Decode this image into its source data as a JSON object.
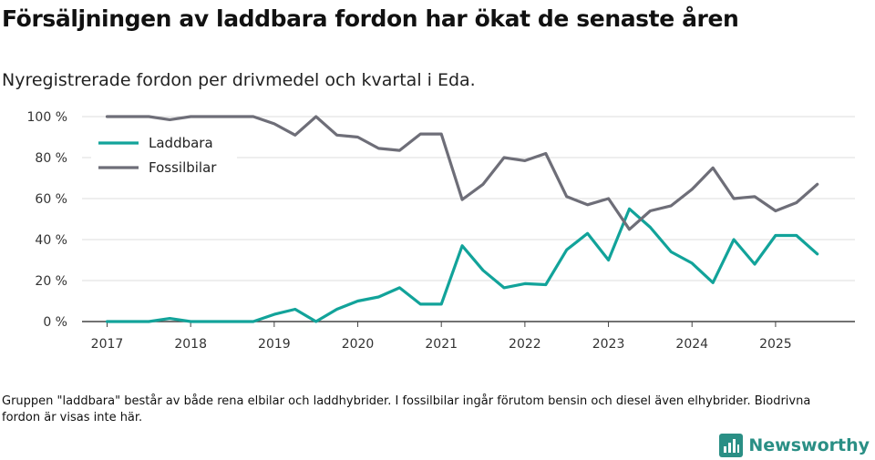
{
  "title": "Försäljningen av laddbara fordon har ökat de senaste åren",
  "subtitle": "Nyregistrerade fordon per drivmedel och kvartal i Eda.",
  "footnote": "Gruppen \"laddbara\" består av både rena elbilar och laddhybrider. I fossilbilar ingår förutom bensin och diesel även elhybrider. Biodrivna fordon är visas inte här.",
  "brand": {
    "name": "Newsworthy",
    "icon": "bar-chart-logo-icon"
  },
  "colors": {
    "laddbara": "#12a39a",
    "fossil": "#6e6e78",
    "grid": "#dddddd",
    "axis": "#444444",
    "brand": "#2a8f85"
  },
  "chart_data": {
    "type": "line",
    "title": "Nyregistrerade fordon per drivmedel och kvartal i Eda.",
    "xlabel": "",
    "ylabel": "",
    "ylim": [
      0,
      100
    ],
    "yticks": [
      0,
      20,
      40,
      60,
      80,
      100
    ],
    "ytick_labels": [
      "0 %",
      "20 %",
      "40 %",
      "60 %",
      "80 %",
      "100 %"
    ],
    "xlim": [
      2016.7,
      2025.95
    ],
    "xticks": [
      2017,
      2018,
      2019,
      2020,
      2021,
      2022,
      2023,
      2024,
      2025
    ],
    "xtick_labels": [
      "2017",
      "2018",
      "2019",
      "2020",
      "2021",
      "2022",
      "2023",
      "2024",
      "2025"
    ],
    "grid": true,
    "legend_position": "top-left",
    "x": [
      2017.0,
      2017.25,
      2017.5,
      2017.75,
      2018.0,
      2018.25,
      2018.5,
      2018.75,
      2019.0,
      2019.25,
      2019.5,
      2019.75,
      2020.0,
      2020.25,
      2020.5,
      2020.75,
      2021.0,
      2021.25,
      2021.5,
      2021.75,
      2022.0,
      2022.25,
      2022.5,
      2022.75,
      2023.0,
      2023.25,
      2023.5,
      2023.75,
      2024.0,
      2024.25,
      2024.5,
      2024.75,
      2025.0,
      2025.25,
      2025.5
    ],
    "series": [
      {
        "name": "Laddbara",
        "color": "#12a39a",
        "values": [
          0,
          0,
          0,
          1.5,
          0,
          0,
          0,
          0,
          3.5,
          6,
          0,
          6,
          10,
          12,
          16.5,
          8.5,
          8.5,
          37,
          25,
          16.5,
          18.5,
          18,
          35,
          43,
          30,
          55,
          46,
          34,
          28.5,
          19,
          40,
          28,
          42,
          42,
          33
        ]
      },
      {
        "name": "Fossilbilar",
        "color": "#6e6e78",
        "values": [
          100,
          100,
          100,
          98.5,
          100,
          100,
          100,
          100,
          96.5,
          91,
          100,
          91,
          90,
          84.5,
          83.5,
          91.5,
          91.5,
          59.5,
          67,
          80,
          78.5,
          82,
          61,
          57,
          60,
          45,
          54,
          56.5,
          64.5,
          75,
          60,
          61,
          54,
          58,
          67
        ]
      }
    ]
  }
}
